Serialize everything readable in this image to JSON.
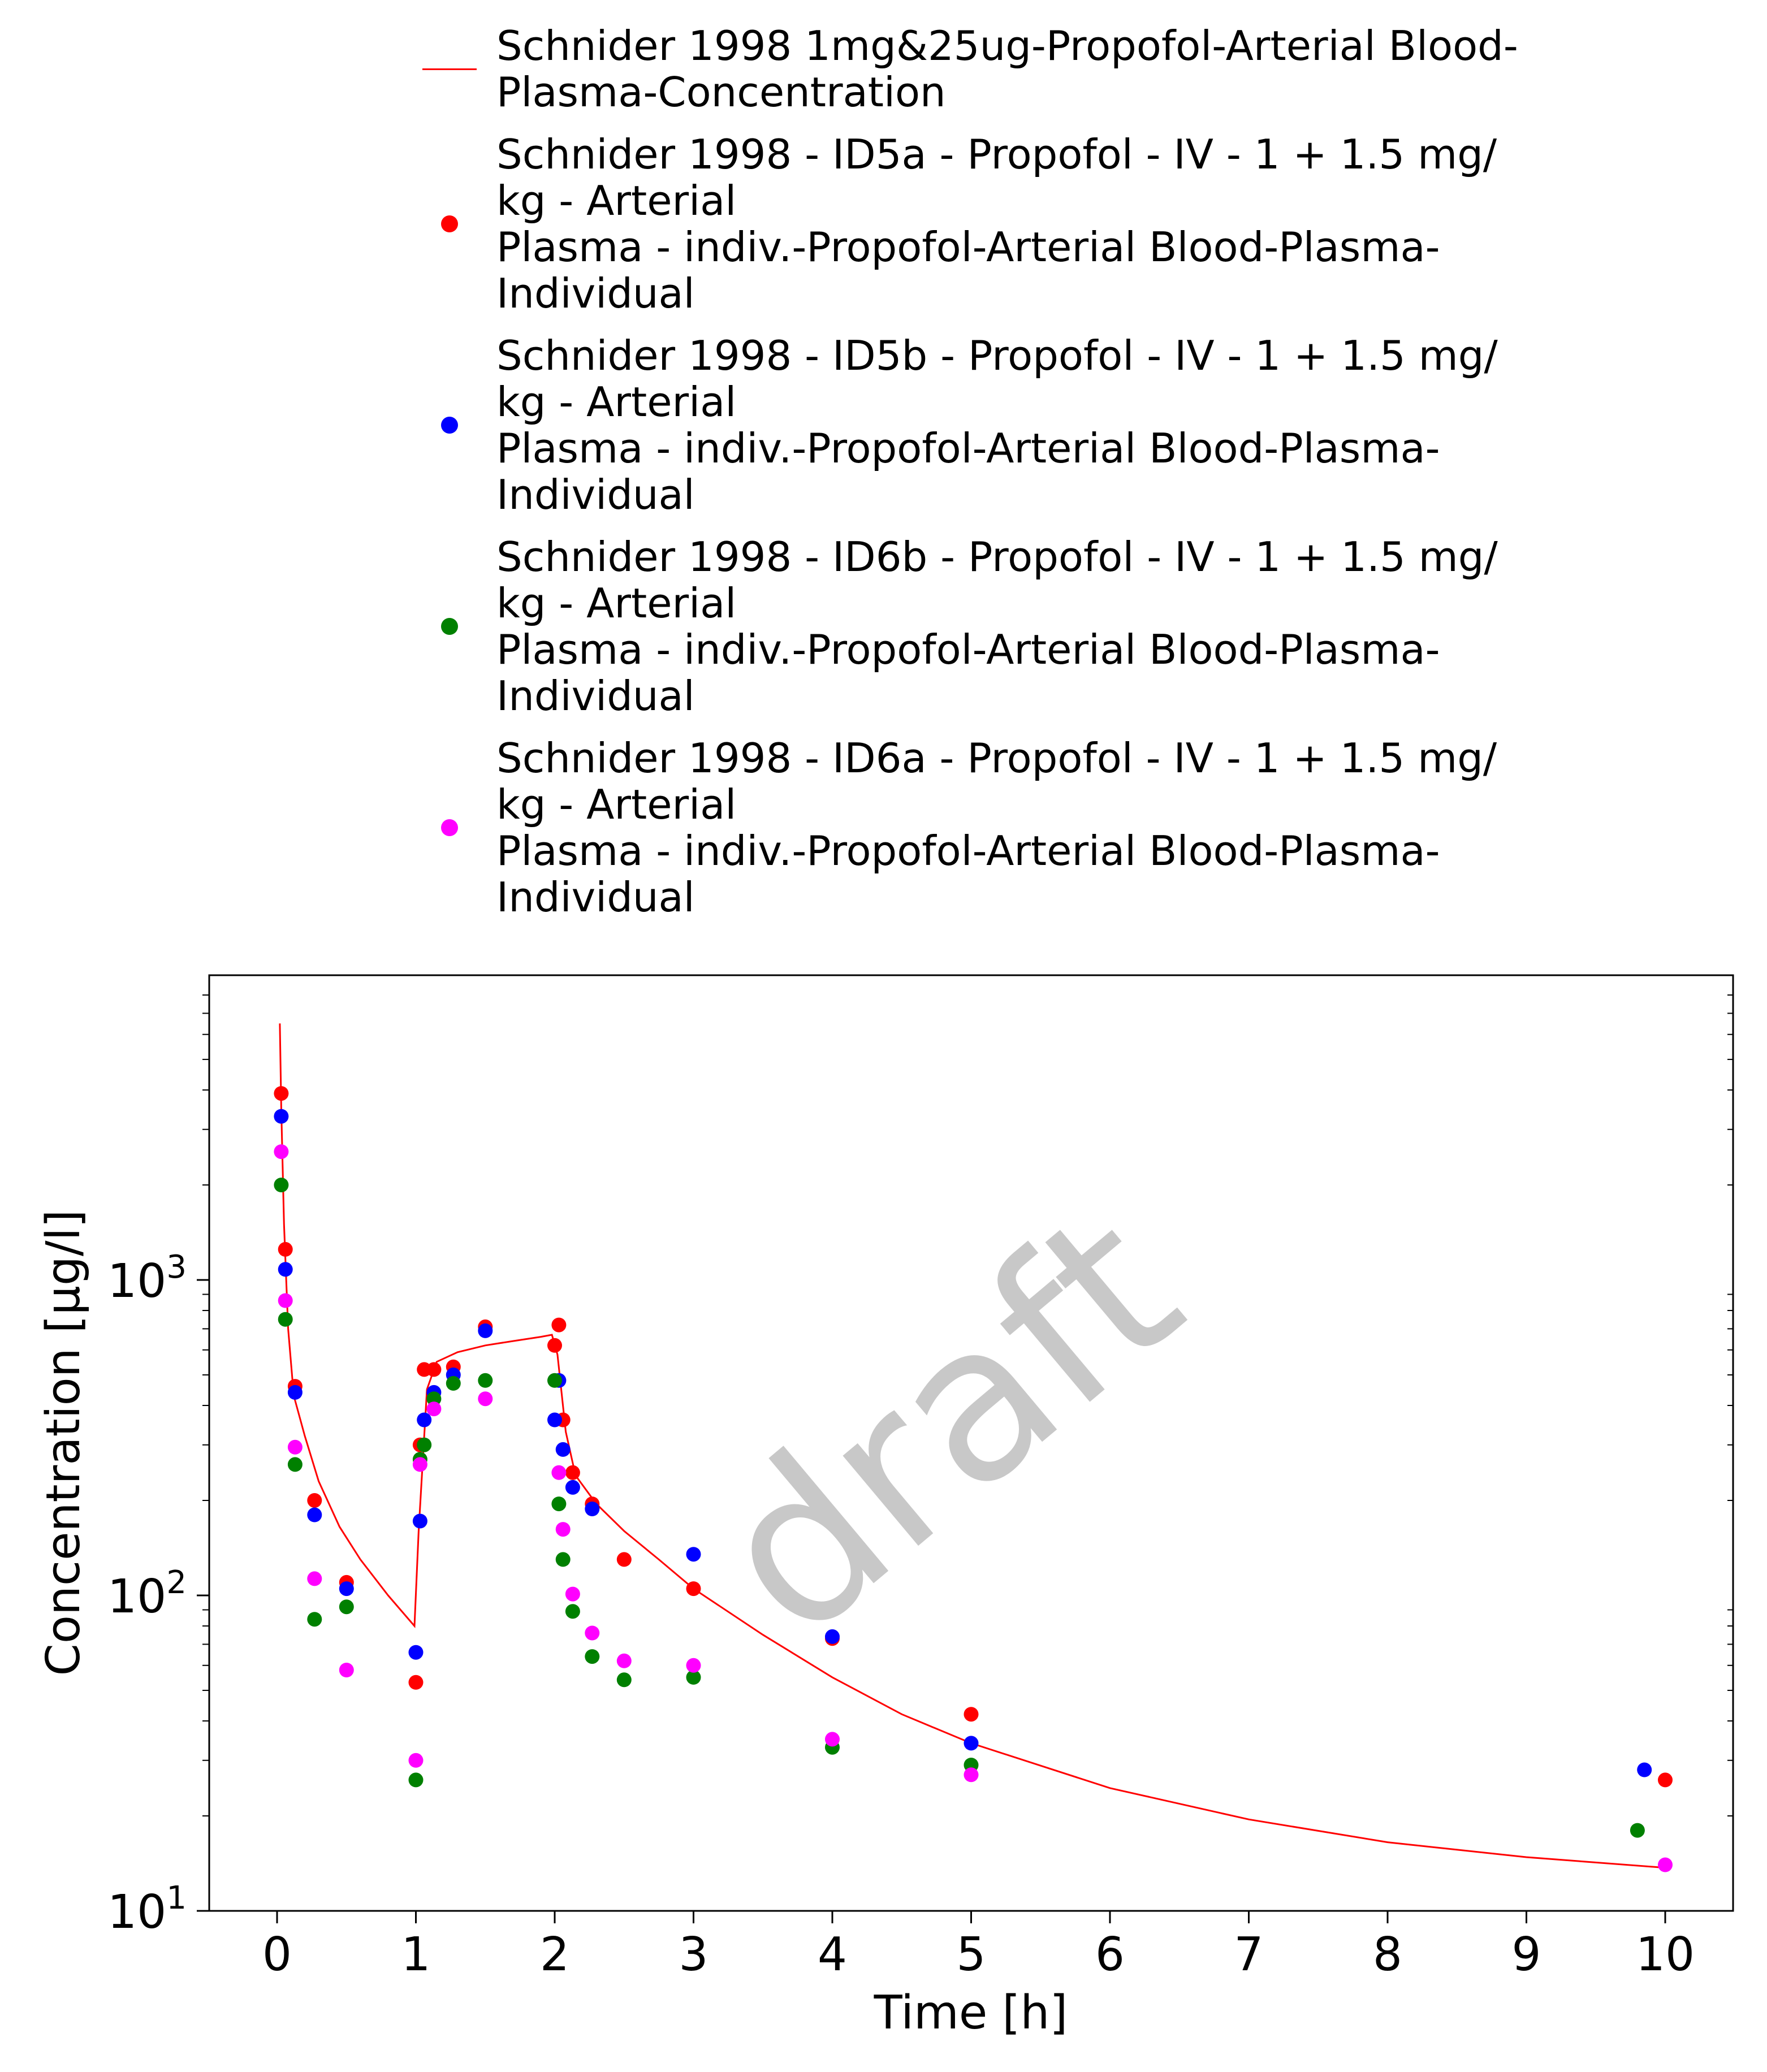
{
  "chart_data": {
    "type": "scatter",
    "title": "",
    "xlabel": "Time [h]",
    "ylabel": "Concentration [µg/l]",
    "xlim": [
      -0.5,
      10.5
    ],
    "ylim": [
      10,
      8000
    ],
    "y_scale": "log",
    "xticks": [
      "0",
      "1",
      "2",
      "3",
      "4",
      "5",
      "6",
      "7",
      "8",
      "9",
      "10"
    ],
    "yticks": [
      {
        "base": "10",
        "exp": "1",
        "value": 10
      },
      {
        "base": "10",
        "exp": "2",
        "value": 100
      },
      {
        "base": "10",
        "exp": "3",
        "value": 1000
      }
    ],
    "grid": false,
    "legend_placement": "top",
    "watermark": "draft",
    "series": [
      {
        "name": "Schnider 1998 1mg&25ug-Propofol-Arterial Blood-\nPlasma-Concentration",
        "kind": "line",
        "color": "#ff0000",
        "x": [
          0.02,
          0.03,
          0.05,
          0.08,
          0.12,
          0.2,
          0.3,
          0.45,
          0.6,
          0.8,
          0.99,
          1.02,
          1.08,
          1.15,
          1.3,
          1.5,
          1.7,
          1.9,
          1.98,
          2.02,
          2.08,
          2.15,
          2.3,
          2.5,
          2.75,
          3.0,
          3.5,
          4.0,
          4.5,
          5.0,
          6.0,
          7.0,
          8.0,
          9.0,
          10.0
        ],
        "y": [
          6500,
          3500,
          1500,
          700,
          430,
          320,
          230,
          165,
          130,
          100,
          80,
          160,
          450,
          550,
          590,
          620,
          640,
          660,
          670,
          580,
          330,
          240,
          195,
          160,
          130,
          105,
          75,
          55,
          42,
          34,
          24.5,
          19.5,
          16.5,
          14.8,
          13.7
        ]
      },
      {
        "name": "Schnider 1998 - ID5a - Propofol - IV - 1 + 1.5 mg/\nkg - Arterial\nPlasma - indiv.-Propofol-Arterial Blood-Plasma-\nIndividual",
        "kind": "scatter",
        "color": "#ff0000",
        "x": [
          0.03,
          0.06,
          0.13,
          0.27,
          0.5,
          1.0,
          1.03,
          1.06,
          1.13,
          1.27,
          1.5,
          2.0,
          2.03,
          2.06,
          2.13,
          2.27,
          2.5,
          3.0,
          4.0,
          5.0,
          10.0
        ],
        "y": [
          3900,
          1250,
          460,
          200,
          110,
          53,
          300,
          520,
          520,
          530,
          710,
          620,
          720,
          360,
          245,
          195,
          130,
          105,
          73,
          42,
          26
        ]
      },
      {
        "name": "Schnider 1998 - ID5b - Propofol - IV - 1 + 1.5 mg/\nkg - Arterial\nPlasma - indiv.-Propofol-Arterial Blood-Plasma-\nIndividual",
        "kind": "scatter",
        "color": "#0000ff",
        "x": [
          0.03,
          0.06,
          0.13,
          0.27,
          0.5,
          1.0,
          1.03,
          1.06,
          1.13,
          1.27,
          1.5,
          2.0,
          2.03,
          2.06,
          2.13,
          2.27,
          3.0,
          4.0,
          5.0,
          9.85
        ],
        "y": [
          3300,
          1080,
          440,
          180,
          105,
          66,
          172,
          360,
          440,
          500,
          690,
          360,
          480,
          290,
          220,
          188,
          135,
          74,
          34,
          28
        ]
      },
      {
        "name": "Schnider 1998 - ID6b - Propofol - IV - 1 + 1.5 mg/\nkg - Arterial\nPlasma - indiv.-Propofol-Arterial Blood-Plasma-\nIndividual",
        "kind": "scatter",
        "color": "#008000",
        "x": [
          0.03,
          0.06,
          0.13,
          0.27,
          0.5,
          1.0,
          1.03,
          1.06,
          1.13,
          1.27,
          1.5,
          2.0,
          2.03,
          2.06,
          2.13,
          2.27,
          2.5,
          3.0,
          4.0,
          5.0,
          9.8
        ],
        "y": [
          2000,
          750,
          260,
          84,
          92,
          26,
          270,
          300,
          420,
          470,
          480,
          480,
          195,
          130,
          89,
          64,
          54,
          55,
          33,
          29,
          18
        ]
      },
      {
        "name": "Schnider 1998 - ID6a - Propofol - IV - 1 + 1.5 mg/\nkg - Arterial\nPlasma - indiv.-Propofol-Arterial Blood-Plasma-\nIndividual",
        "kind": "scatter",
        "color": "#ff00ff",
        "x": [
          0.03,
          0.06,
          0.13,
          0.27,
          0.5,
          1.0,
          1.03,
          1.13,
          1.5,
          2.03,
          2.06,
          2.13,
          2.27,
          2.5,
          3.0,
          4.0,
          5.0,
          10.0
        ],
        "y": [
          2550,
          860,
          295,
          113,
          58,
          30,
          260,
          390,
          420,
          245,
          162,
          101,
          76,
          62,
          60,
          35,
          27,
          14
        ]
      }
    ]
  }
}
